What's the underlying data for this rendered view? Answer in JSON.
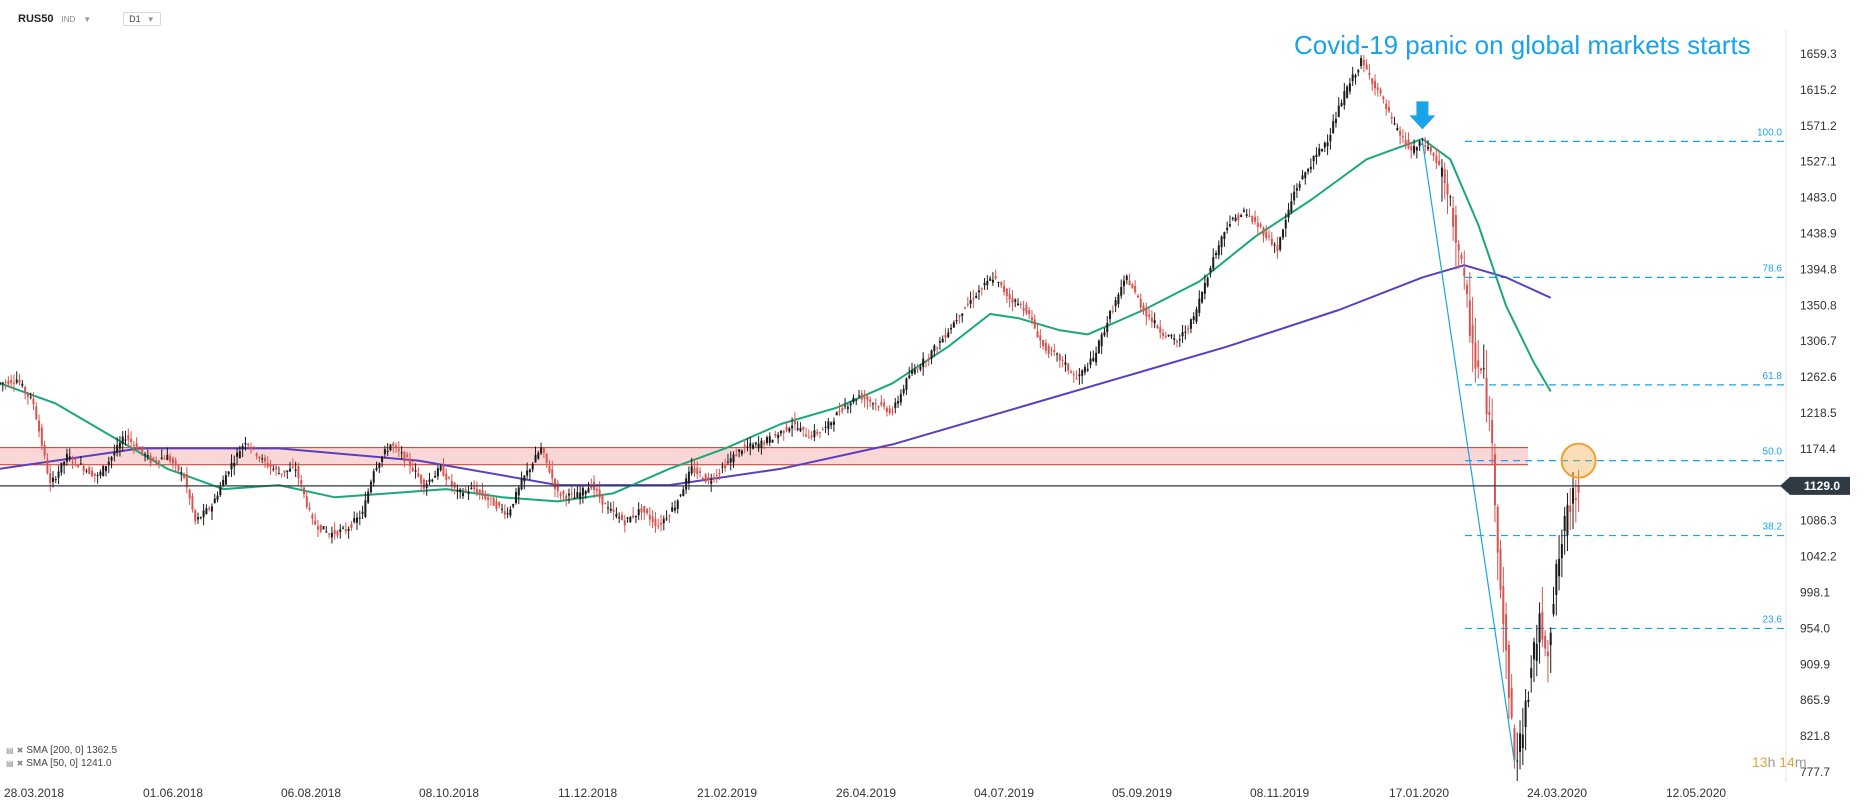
{
  "toolbar": {
    "symbol": "RUS50",
    "instrument_type": "IND",
    "timeframe": "D1"
  },
  "annotation": {
    "text": "Covid-19 panic on global markets starts",
    "color": "#1aa3e8"
  },
  "indicators": [
    {
      "label": "SMA [200, 0]",
      "value": "1362.5",
      "color": "#5a3fbf"
    },
    {
      "label": "SMA [50, 0]",
      "value": "1241.0",
      "color": "#1aa87a"
    }
  ],
  "timer": {
    "hours": "13",
    "h_unit": "h",
    "minutes": "14",
    "m_unit": "m"
  },
  "colors": {
    "up": "#1b1b1b",
    "down": "#d9534f",
    "zone_fill": "#f8caca",
    "zone_line": "#c0392b",
    "fib": "#1aa3e8",
    "sma200": "#5a3fbf",
    "sma50": "#1aa87a",
    "price_tag": "#2f3a45",
    "highlight": "#f0a030"
  },
  "chart_data": {
    "type": "candlestick",
    "symbol": "RUS50",
    "timeframe": "D1",
    "y_axis_ticks": [
      1659.3,
      1615.2,
      1571.2,
      1527.1,
      1483.0,
      1438.9,
      1394.8,
      1350.8,
      1306.7,
      1262.6,
      1218.5,
      1174.4,
      1129.0,
      1086.3,
      1042.2,
      998.1,
      954.0,
      909.9,
      865.9,
      821.8,
      777.7
    ],
    "ylim": [
      760,
      1690
    ],
    "x_axis_ticks": [
      "28.03.2018",
      "01.06.2018",
      "06.08.2018",
      "08.10.2018",
      "11.12.2018",
      "21.02.2019",
      "26.04.2019",
      "04.07.2019",
      "05.09.2019",
      "08.11.2019",
      "17.01.2020",
      "24.03.2020",
      "12.05.2020"
    ],
    "current_price": "1129.0",
    "resistance_zone": [
      1155,
      1176
    ],
    "fibonacci": [
      {
        "level": "100.0",
        "price": 1552
      },
      {
        "level": "78.6",
        "price": 1385
      },
      {
        "level": "61.8",
        "price": 1253
      },
      {
        "level": "50.0",
        "price": 1160
      },
      {
        "level": "38.2",
        "price": 1068
      },
      {
        "level": "23.6",
        "price": 954
      }
    ],
    "price_path": [
      [
        0,
        1255
      ],
      [
        6,
        1260
      ],
      [
        12,
        1230
      ],
      [
        18,
        1130
      ],
      [
        24,
        1165
      ],
      [
        35,
        1140
      ],
      [
        45,
        1190
      ],
      [
        54,
        1160
      ],
      [
        60,
        1165
      ],
      [
        66,
        1140
      ],
      [
        70,
        1085
      ],
      [
        76,
        1105
      ],
      [
        82,
        1150
      ],
      [
        88,
        1185
      ],
      [
        94,
        1160
      ],
      [
        100,
        1145
      ],
      [
        106,
        1150
      ],
      [
        112,
        1085
      ],
      [
        118,
        1070
      ],
      [
        124,
        1075
      ],
      [
        130,
        1095
      ],
      [
        134,
        1150
      ],
      [
        140,
        1180
      ],
      [
        146,
        1160
      ],
      [
        152,
        1130
      ],
      [
        158,
        1150
      ],
      [
        164,
        1120
      ],
      [
        170,
        1125
      ],
      [
        176,
        1110
      ],
      [
        182,
        1095
      ],
      [
        188,
        1140
      ],
      [
        194,
        1175
      ],
      [
        200,
        1120
      ],
      [
        206,
        1115
      ],
      [
        212,
        1130
      ],
      [
        218,
        1100
      ],
      [
        224,
        1085
      ],
      [
        230,
        1100
      ],
      [
        236,
        1080
      ],
      [
        242,
        1105
      ],
      [
        248,
        1150
      ],
      [
        254,
        1135
      ],
      [
        260,
        1155
      ],
      [
        266,
        1175
      ],
      [
        272,
        1180
      ],
      [
        278,
        1190
      ],
      [
        284,
        1205
      ],
      [
        290,
        1190
      ],
      [
        296,
        1200
      ],
      [
        302,
        1225
      ],
      [
        308,
        1240
      ],
      [
        314,
        1230
      ],
      [
        320,
        1220
      ],
      [
        326,
        1265
      ],
      [
        332,
        1285
      ],
      [
        338,
        1310
      ],
      [
        344,
        1340
      ],
      [
        350,
        1365
      ],
      [
        356,
        1385
      ],
      [
        362,
        1360
      ],
      [
        368,
        1345
      ],
      [
        374,
        1300
      ],
      [
        380,
        1285
      ],
      [
        386,
        1260
      ],
      [
        392,
        1285
      ],
      [
        398,
        1340
      ],
      [
        404,
        1385
      ],
      [
        410,
        1345
      ],
      [
        416,
        1320
      ],
      [
        422,
        1305
      ],
      [
        428,
        1335
      ],
      [
        434,
        1400
      ],
      [
        440,
        1450
      ],
      [
        446,
        1465
      ],
      [
        452,
        1445
      ],
      [
        458,
        1420
      ],
      [
        464,
        1490
      ],
      [
        470,
        1525
      ],
      [
        476,
        1555
      ],
      [
        482,
        1610
      ],
      [
        488,
        1650
      ],
      [
        494,
        1615
      ],
      [
        500,
        1570
      ],
      [
        506,
        1540
      ],
      [
        510,
        1550
      ],
      [
        513,
        1540
      ],
      [
        516,
        1520
      ],
      [
        520,
        1470
      ],
      [
        523,
        1420
      ],
      [
        526,
        1350
      ],
      [
        529,
        1280
      ],
      [
        532,
        1260
      ],
      [
        535,
        1175
      ],
      [
        537,
        1060
      ],
      [
        539,
        960
      ],
      [
        541,
        880
      ],
      [
        543,
        790
      ],
      [
        546,
        830
      ],
      [
        549,
        905
      ],
      [
        552,
        960
      ],
      [
        555,
        930
      ],
      [
        558,
        1020
      ],
      [
        561,
        1080
      ],
      [
        564,
        1120
      ],
      [
        566,
        1129
      ]
    ],
    "sma50_path": [
      [
        0,
        1255
      ],
      [
        20,
        1230
      ],
      [
        40,
        1190
      ],
      [
        60,
        1150
      ],
      [
        80,
        1125
      ],
      [
        100,
        1130
      ],
      [
        120,
        1115
      ],
      [
        140,
        1120
      ],
      [
        160,
        1125
      ],
      [
        180,
        1115
      ],
      [
        200,
        1110
      ],
      [
        220,
        1120
      ],
      [
        240,
        1150
      ],
      [
        260,
        1175
      ],
      [
        280,
        1205
      ],
      [
        300,
        1225
      ],
      [
        320,
        1255
      ],
      [
        340,
        1300
      ],
      [
        355,
        1340
      ],
      [
        365,
        1335
      ],
      [
        380,
        1320
      ],
      [
        390,
        1315
      ],
      [
        410,
        1345
      ],
      [
        430,
        1380
      ],
      [
        450,
        1435
      ],
      [
        470,
        1480
      ],
      [
        490,
        1530
      ],
      [
        510,
        1555
      ],
      [
        520,
        1530
      ],
      [
        530,
        1450
      ],
      [
        540,
        1350
      ],
      [
        550,
        1280
      ],
      [
        556,
        1245
      ]
    ],
    "sma200_path": [
      [
        0,
        1150
      ],
      [
        50,
        1175
      ],
      [
        100,
        1175
      ],
      [
        150,
        1160
      ],
      [
        200,
        1130
      ],
      [
        240,
        1130
      ],
      [
        280,
        1150
      ],
      [
        320,
        1180
      ],
      [
        360,
        1220
      ],
      [
        400,
        1260
      ],
      [
        440,
        1300
      ],
      [
        480,
        1345
      ],
      [
        510,
        1385
      ],
      [
        525,
        1400
      ],
      [
        540,
        1385
      ],
      [
        556,
        1360
      ]
    ],
    "axis_x_range": [
      0,
      640
    ]
  }
}
